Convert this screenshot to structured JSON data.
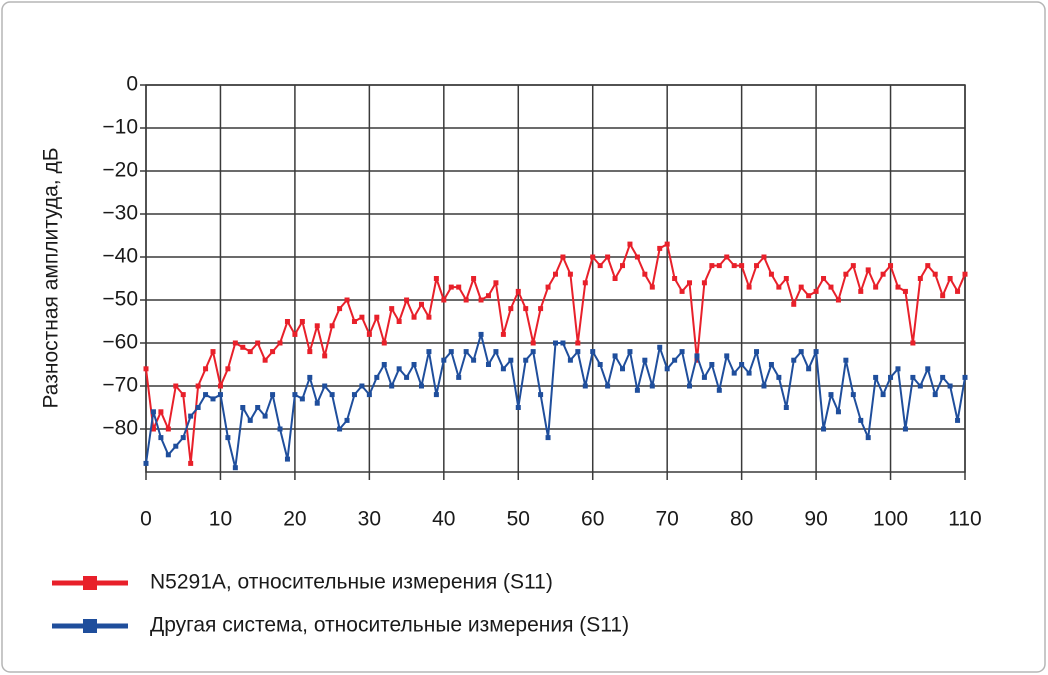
{
  "chart_data": {
    "type": "line",
    "y_label": "Разностная амплитуда, дБ",
    "x": [
      0,
      1,
      2,
      3,
      4,
      5,
      6,
      7,
      8,
      9,
      10,
      11,
      12,
      13,
      14,
      15,
      16,
      17,
      18,
      19,
      20,
      21,
      22,
      23,
      24,
      25,
      26,
      27,
      28,
      29,
      30,
      31,
      32,
      33,
      34,
      35,
      36,
      37,
      38,
      39,
      40,
      41,
      42,
      43,
      44,
      45,
      46,
      47,
      48,
      49,
      50,
      51,
      52,
      53,
      54,
      55,
      56,
      57,
      58,
      59,
      60,
      61,
      62,
      63,
      64,
      65,
      66,
      67,
      68,
      69,
      70,
      71,
      72,
      73,
      74,
      75,
      76,
      77,
      78,
      79,
      80,
      81,
      82,
      83,
      84,
      85,
      86,
      87,
      88,
      89,
      90,
      91,
      92,
      93,
      94,
      95,
      96,
      97,
      98,
      99,
      100,
      101,
      102,
      103,
      104,
      105,
      106,
      107,
      108,
      109,
      110
    ],
    "series": [
      {
        "name": "N5291A, относительные измерения (S11)",
        "color": "#e8202a",
        "values": [
          -66,
          -80,
          -76,
          -80,
          -70,
          -72,
          -88,
          -70,
          -66,
          -62,
          -70,
          -66,
          -60,
          -61,
          -62,
          -60,
          -64,
          -62,
          -60,
          -55,
          -58,
          -55,
          -62,
          -56,
          -63,
          -56,
          -52,
          -50,
          -55,
          -54,
          -58,
          -54,
          -60,
          -52,
          -55,
          -50,
          -54,
          -51,
          -54,
          -45,
          -50,
          -47,
          -47,
          -50,
          -45,
          -50,
          -49,
          -46,
          -58,
          -52,
          -48,
          -52,
          -60,
          -52,
          -47,
          -44,
          -40,
          -44,
          -60,
          -46,
          -40,
          -42,
          -40,
          -45,
          -42,
          -37,
          -40,
          -44,
          -47,
          -38,
          -37,
          -45,
          -48,
          -46,
          -64,
          -46,
          -42,
          -42,
          -40,
          -42,
          -42,
          -47,
          -42,
          -40,
          -44,
          -47,
          -45,
          -51,
          -47,
          -49,
          -48,
          -45,
          -47,
          -50,
          -44,
          -42,
          -48,
          -43,
          -47,
          -44,
          -42,
          -47,
          -48,
          -60,
          -45,
          -42,
          -44,
          -49,
          -45,
          -48,
          -44
        ]
      },
      {
        "name": "Другая система, относительные измерения (S11)",
        "color": "#1f4e9c",
        "values": [
          -88,
          -76,
          -82,
          -86,
          -84,
          -82,
          -77,
          -75,
          -72,
          -73,
          -72,
          -82,
          -89,
          -75,
          -78,
          -75,
          -77,
          -72,
          -80,
          -87,
          -72,
          -73,
          -68,
          -74,
          -70,
          -72,
          -80,
          -78,
          -72,
          -70,
          -72,
          -68,
          -65,
          -70,
          -66,
          -68,
          -65,
          -70,
          -62,
          -72,
          -64,
          -62,
          -68,
          -62,
          -64,
          -58,
          -65,
          -62,
          -66,
          -64,
          -75,
          -64,
          -62,
          -72,
          -82,
          -60,
          -60,
          -64,
          -62,
          -70,
          -62,
          -65,
          -70,
          -63,
          -66,
          -62,
          -71,
          -64,
          -70,
          -61,
          -66,
          -64,
          -62,
          -70,
          -63,
          -68,
          -65,
          -71,
          -63,
          -67,
          -65,
          -67,
          -62,
          -70,
          -65,
          -68,
          -75,
          -64,
          -62,
          -66,
          -62,
          -80,
          -72,
          -76,
          -64,
          -72,
          -78,
          -82,
          -68,
          -72,
          -68,
          -66,
          -80,
          -68,
          -70,
          -66,
          -72,
          -68,
          -70,
          -78,
          -68
        ]
      }
    ],
    "xlim": [
      0,
      110
    ],
    "xticks": [
      0,
      10,
      20,
      30,
      40,
      50,
      60,
      70,
      80,
      90,
      100,
      110
    ],
    "ylim": [
      -90,
      0
    ],
    "yticks": [
      0,
      {
        "value": -10,
        "label": "−10"
      },
      {
        "value": -20,
        "label": "−20"
      },
      {
        "value": -30,
        "label": "−30"
      },
      {
        "value": -40,
        "label": "−40"
      },
      {
        "value": -50,
        "label": "−50"
      },
      {
        "value": -60,
        "label": "−60"
      },
      {
        "value": -70,
        "label": "−70"
      },
      {
        "value": -80,
        "label": "−80"
      }
    ],
    "grid": true
  }
}
